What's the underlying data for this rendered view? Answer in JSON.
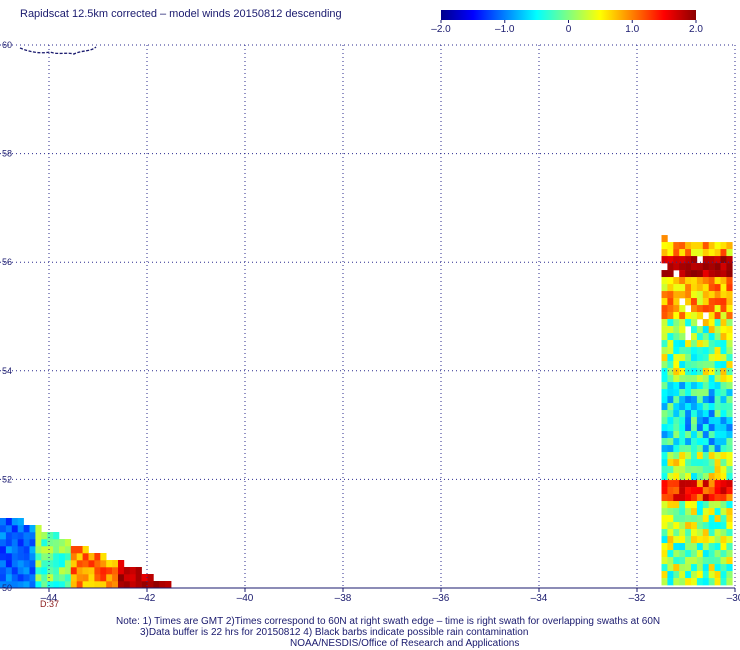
{
  "title": "Rapidscat 12.5km corrected – model winds 20150812 descending",
  "colorbar": {
    "ticks": [
      -2.0,
      -1.0,
      0,
      1.0,
      2.0
    ],
    "tick_labels": [
      "–2.0",
      "–1.0",
      "0",
      "1.0",
      "2.0"
    ],
    "range": [
      -2.0,
      2.0
    ],
    "colormap": [
      "#00008b",
      "#0000ff",
      "#0080ff",
      "#00ffff",
      "#80ff80",
      "#ffff00",
      "#ff8000",
      "#ff0000",
      "#8b0000"
    ]
  },
  "time_label": "D:37",
  "notes": {
    "line1": "Note: 1) Times are GMT 2)Times correspond to 60N at right swath edge – time is right swath for overlapping swaths at 60N",
    "line2": "3)Data buffer is 22 hrs for 20150812 4) Black barbs indicate possible rain contamination",
    "line3": "NOAA/NESDIS/Office of Research and Applications"
  },
  "chart_data": {
    "type": "heatmap",
    "title": "Rapidscat 12.5km corrected – model winds 20150812 descending",
    "xlabel": "",
    "ylabel": "",
    "xlim": [
      -45,
      -30
    ],
    "ylim": [
      50,
      60
    ],
    "x_ticks": [
      -44,
      -42,
      -40,
      -38,
      -36,
      -34,
      -32,
      -30
    ],
    "x_tick_labels": [
      "–44",
      "–42",
      "–40",
      "–38",
      "–36",
      "–34",
      "–32",
      "–30"
    ],
    "y_ticks": [
      50,
      52,
      54,
      56,
      58,
      60
    ],
    "y_tick_labels": [
      "50",
      "52",
      "54",
      "56",
      "58",
      "60"
    ],
    "grid": true,
    "value_range": [
      -2.0,
      2.0
    ],
    "swaths": [
      {
        "name": "",
        "x_range": [
          -45,
          -41.5
        ],
        "y_range": [
          50,
          51.3
        ]
      },
      {
        "name": "",
        "x_range": [
          -31.5,
          -30
        ],
        "y_range": [
          50,
          56.5
        ]
      }
    ]
  }
}
